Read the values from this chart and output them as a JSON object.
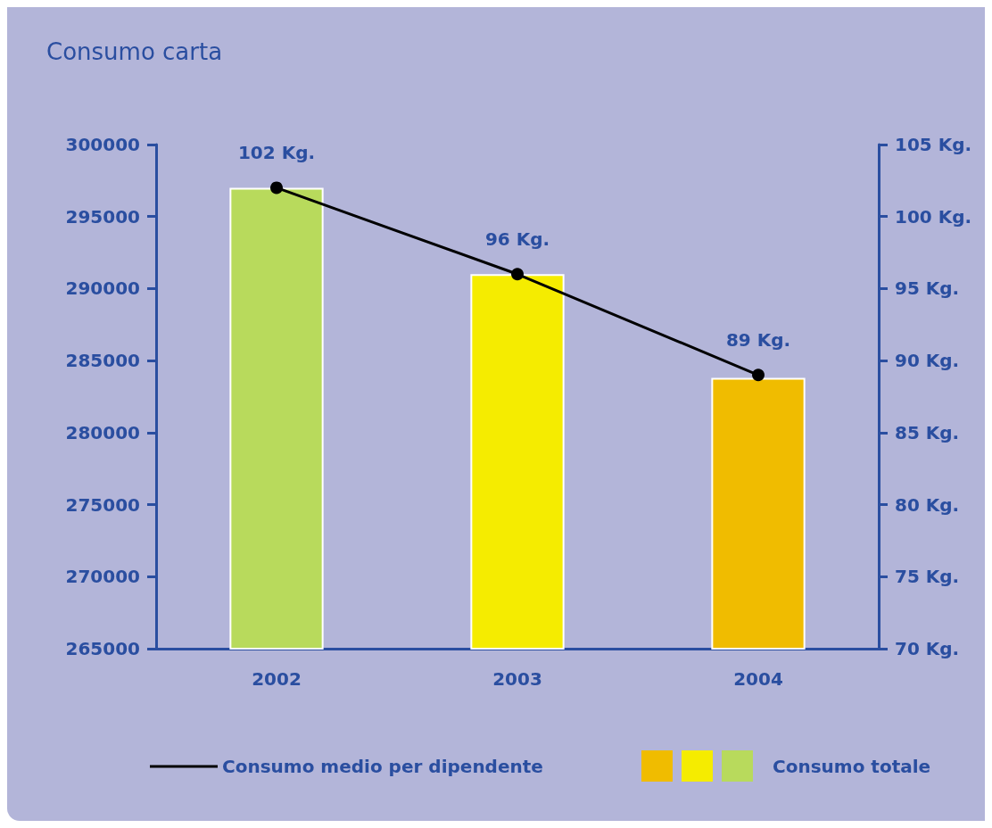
{
  "chart_data": {
    "type": "bar",
    "title": "Consumo carta",
    "categories": [
      "2002",
      "2003",
      "2004"
    ],
    "series": [
      {
        "name": "Consumo totale",
        "colors": [
          "#b8da5c",
          "#f5ec00",
          "#f0bc00"
        ],
        "values": [
          297000,
          291000,
          283800
        ]
      },
      {
        "name": "Consumo medio per dipendente",
        "type": "line",
        "axis": "y2",
        "color": "#000000",
        "values": [
          102,
          96,
          89
        ],
        "value_labels": [
          "102 Kg.",
          "96 Kg.",
          "89 Kg."
        ]
      }
    ],
    "ylim": [
      265000,
      300000
    ],
    "yticks": [
      265000,
      270000,
      275000,
      280000,
      285000,
      290000,
      295000,
      300000
    ],
    "y2lim": [
      70,
      105
    ],
    "y2ticks": [
      {
        "value": 70,
        "label": "70 Kg."
      },
      {
        "value": 75,
        "label": "75 Kg."
      },
      {
        "value": 80,
        "label": "80 Kg."
      },
      {
        "value": 85,
        "label": "85 Kg."
      },
      {
        "value": 90,
        "label": "90 Kg."
      },
      {
        "value": 95,
        "label": "95 Kg."
      },
      {
        "value": 100,
        "label": "100 Kg."
      },
      {
        "value": 105,
        "label": "105 Kg."
      }
    ],
    "legend": "bottom",
    "marker": "circle",
    "grid": false
  }
}
